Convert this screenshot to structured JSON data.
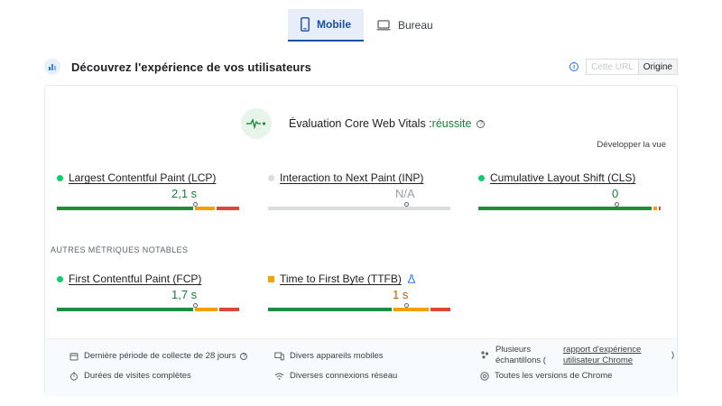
{
  "tabs": [
    {
      "label": "Mobile",
      "active": true
    },
    {
      "label": "Bureau",
      "active": false
    }
  ],
  "header": {
    "title": "Découvrez l'expérience de vos utilisateurs",
    "url_label": "Cette URL",
    "origin_label": "Origine"
  },
  "cwv": {
    "prefix": "Évaluation Core Web Vitals :",
    "result": "réussite",
    "expand_label": "Développer la vue"
  },
  "colors": {
    "good": "#0cce6b",
    "good_bar": "#1e8e3e",
    "average": "#f4a000",
    "poor": "#e0453a",
    "na": "#dadce0",
    "accent": "#1a73e8"
  },
  "metrics": [
    {
      "name": "Largest Contentful Paint (LCP)",
      "value": "2,1 s",
      "status": "good",
      "marker": 0.75,
      "segments": [
        0.75,
        0.12,
        0.13
      ]
    },
    {
      "name": "Interaction to Next Paint (INP)",
      "value": "N/A",
      "status": "na",
      "marker": 0.75,
      "segments": [
        1,
        0,
        0
      ]
    },
    {
      "name": "Cumulative Layout Shift (CLS)",
      "value": "0",
      "status": "good",
      "marker": 0.75,
      "segments": [
        0.95,
        0.03,
        0.02
      ]
    }
  ],
  "other_label": "AUTRES MÉTRIQUES NOTABLES",
  "other_metrics": [
    {
      "name": "First Contentful Paint (FCP)",
      "value": "1,7 s",
      "status": "good",
      "marker": 0.75,
      "segments": [
        0.75,
        0.13,
        0.12
      ]
    },
    {
      "name": "Time to First Byte (TTFB)",
      "value": "1 s",
      "status": "average",
      "marker": 0.75,
      "segments": [
        0.68,
        0.2,
        0.12
      ]
    }
  ],
  "footer": {
    "period": "Dernière période de collecte de 28 jours",
    "visits": "Durées de visites complètes",
    "devices": "Divers appareils mobiles",
    "network": "Diverses connexions réseau",
    "samples_1": "Plusieurs",
    "samples_2": "échantillons (",
    "report_link_1": "rapport d'expérience",
    "report_link_2": "utilisateur Chrome",
    "close_paren": ")",
    "versions": "Toutes les versions de Chrome"
  }
}
